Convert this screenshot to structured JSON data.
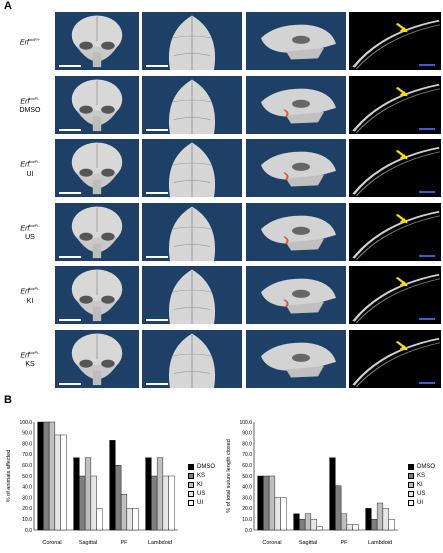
{
  "panel_a_label": "A",
  "panel_b_label": "B",
  "rows": [
    {
      "gene": "Erf",
      "sup": "loxP/+",
      "treatment": ""
    },
    {
      "gene": "Erf",
      "sup": "loxP/-",
      "treatment": "DMSO"
    },
    {
      "gene": "Erf",
      "sup": "loxP/-",
      "treatment": "UI"
    },
    {
      "gene": "Erf",
      "sup": "loxP/-",
      "treatment": "US"
    },
    {
      "gene": "Erf",
      "sup": "loxP/-",
      "treatment": "KI"
    },
    {
      "gene": "Erf",
      "sup": "loxP/-",
      "treatment": "KS"
    }
  ],
  "colors": {
    "scan_bg": "#1e3f66",
    "ct_bg": "#000000",
    "arrow": "#ffe000",
    "scale_blue": "#3a5ed8",
    "highlight": "#e0533a"
  },
  "chart_data": [
    {
      "type": "bar",
      "ylabel": "% of animals affected",
      "ylim": [
        0,
        100
      ],
      "yticks": [
        "0.0",
        "10.0",
        "20.0",
        "30.0",
        "40.0",
        "50.0",
        "60.0",
        "70.0",
        "80.0",
        "90.0",
        "100.0"
      ],
      "categories": [
        "Coronal",
        "Sagittal",
        "PF",
        "Lambdoid"
      ],
      "series": [
        {
          "name": "DMSO",
          "color": "#000000",
          "values": [
            100,
            67,
            83,
            67
          ]
        },
        {
          "name": "KS",
          "color": "#7f7f7f",
          "values": [
            100,
            50,
            60,
            50
          ]
        },
        {
          "name": "KI",
          "color": "#bfbfbf",
          "values": [
            100,
            67,
            33,
            67
          ]
        },
        {
          "name": "US",
          "color": "#e6e6e6",
          "values": [
            88,
            50,
            20,
            50
          ]
        },
        {
          "name": "UI",
          "color": "#ffffff",
          "values": [
            88,
            20,
            20,
            50
          ]
        }
      ]
    },
    {
      "type": "bar",
      "ylabel": "% of total suture length closed",
      "ylim": [
        0,
        100
      ],
      "yticks": [
        "0.0",
        "10.0",
        "20.0",
        "30.0",
        "40.0",
        "50.0",
        "60.0",
        "70.0",
        "80.0",
        "90.0",
        "100.0"
      ],
      "categories": [
        "Coronal",
        "Sagittal",
        "PF",
        "Lambdoid"
      ],
      "series": [
        {
          "name": "DMSO",
          "color": "#000000",
          "values": [
            50,
            15,
            67,
            20
          ]
        },
        {
          "name": "KS",
          "color": "#7f7f7f",
          "values": [
            50,
            10,
            41,
            10
          ]
        },
        {
          "name": "KI",
          "color": "#bfbfbf",
          "values": [
            50,
            15,
            15,
            25
          ]
        },
        {
          "name": "US",
          "color": "#e6e6e6",
          "values": [
            30,
            10,
            5,
            20
          ]
        },
        {
          "name": "UI",
          "color": "#ffffff",
          "values": [
            30,
            3,
            5,
            10
          ]
        }
      ]
    }
  ]
}
